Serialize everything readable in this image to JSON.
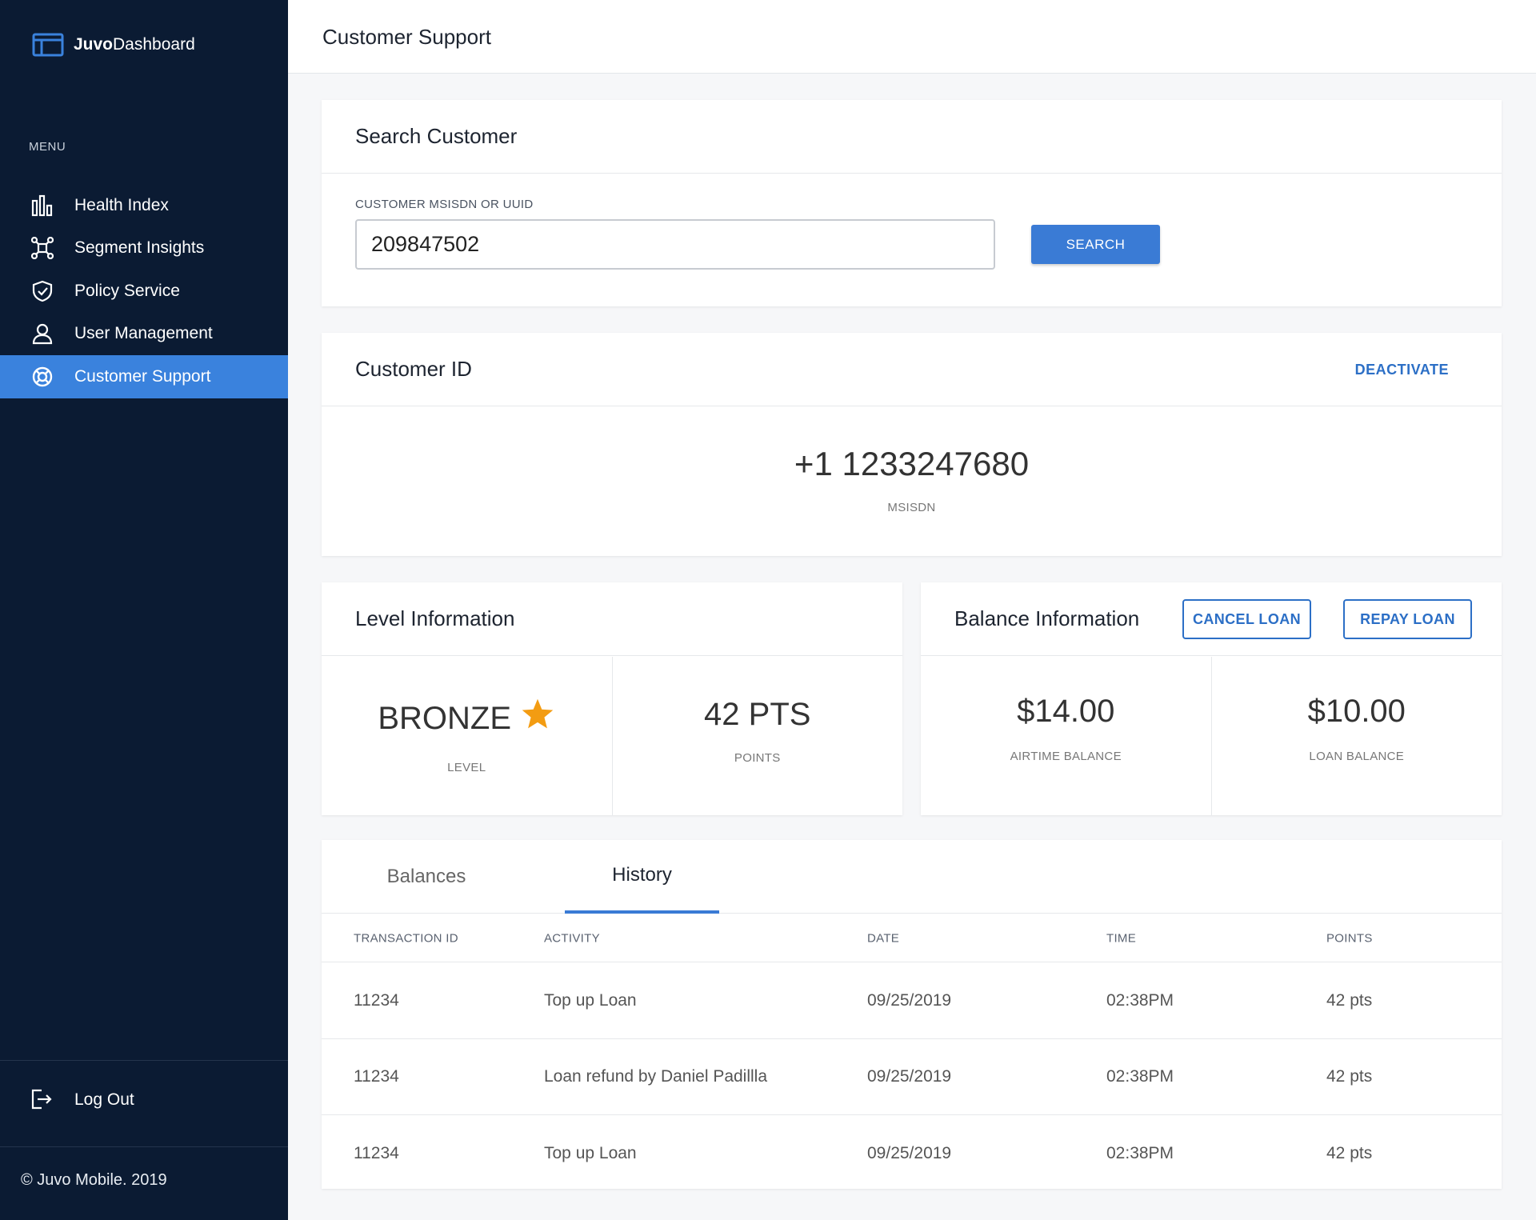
{
  "brand": {
    "bold": "Juvo",
    "light": "Dashboard"
  },
  "sidebar": {
    "menu_label": "MENU",
    "items": [
      {
        "label": "Health Index",
        "icon": "bar-chart-icon"
      },
      {
        "label": "Segment Insights",
        "icon": "network-icon"
      },
      {
        "label": "Policy Service",
        "icon": "shield-check-icon"
      },
      {
        "label": "User Management",
        "icon": "user-icon"
      },
      {
        "label": "Customer Support",
        "icon": "lifebuoy-icon",
        "active": true
      }
    ],
    "logout": "Log Out",
    "copyright": "© Juvo Mobile. 2019"
  },
  "header": {
    "title": "Customer Support"
  },
  "search": {
    "title": "Search Customer",
    "field_label": "CUSTOMER MSISDN OR UUID",
    "value": "209847502",
    "button": "SEARCH"
  },
  "customer": {
    "title": "Customer ID",
    "deactivate": "DEACTIVATE",
    "msisdn": "+1 1233247680",
    "msisdn_label": "MSISDN"
  },
  "level": {
    "title": "Level Information",
    "level_value": "BRONZE",
    "level_label": "LEVEL",
    "points_value": "42 PTS",
    "points_label": "POINTS"
  },
  "balance": {
    "title": "Balance Information",
    "cancel_loan": "CANCEL LOAN",
    "repay_loan": "REPAY LOAN",
    "airtime_value": "$14.00",
    "airtime_label": "AIRTIME BALANCE",
    "loan_value": "$10.00",
    "loan_label": "LOAN BALANCE"
  },
  "history": {
    "tabs": [
      "Balances",
      "History"
    ],
    "active_tab": "History",
    "columns": [
      "TRANSACTION ID",
      "ACTIVITY",
      "DATE",
      "TIME",
      "POINTS"
    ],
    "rows": [
      [
        "11234",
        "Top up Loan",
        "09/25/2019",
        "02:38PM",
        "42 pts"
      ],
      [
        "11234",
        "Loan refund by Daniel Padillla",
        "09/25/2019",
        "02:38PM",
        "42 pts"
      ],
      [
        "11234",
        "Top up Loan",
        "09/25/2019",
        "02:38PM",
        "42 pts"
      ]
    ]
  },
  "colors": {
    "sidebar_bg": "#0b1b33",
    "accent": "#3a7bd5",
    "star": "#f39c12"
  }
}
